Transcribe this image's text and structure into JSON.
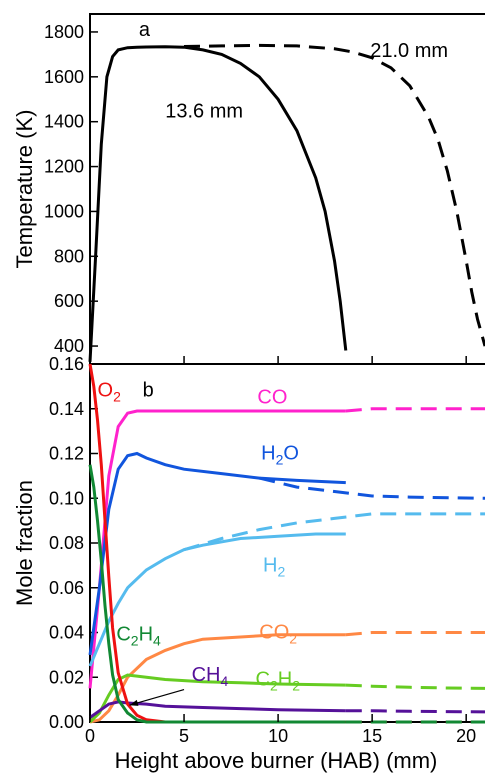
{
  "figure": {
    "xlabel": "Height above burner (HAB) (mm)",
    "x_ticks": [
      "0",
      "5",
      "10",
      "15",
      "20"
    ]
  },
  "chart_data": [
    {
      "type": "line",
      "panel_label": "a",
      "ylabel": "Temperature (K)",
      "ylim": [
        320,
        1880
      ],
      "xlim": [
        0,
        21
      ],
      "y_ticks": [
        "400",
        "600",
        "800",
        "1000",
        "1200",
        "1400",
        "1600",
        "1800"
      ],
      "series": [
        {
          "name": "13.6 mm",
          "style": "solid",
          "color": "#000000",
          "x": [
            0.0,
            0.3,
            0.6,
            0.9,
            1.2,
            1.5,
            2.0,
            2.5,
            3.0,
            4.0,
            5.0,
            6.0,
            7.0,
            8.0,
            9.0,
            10.0,
            11.0,
            12.0,
            12.5,
            13.0,
            13.3,
            13.6
          ],
          "y": [
            330,
            800,
            1300,
            1600,
            1690,
            1720,
            1730,
            1732,
            1733,
            1734,
            1732,
            1720,
            1700,
            1660,
            1600,
            1500,
            1360,
            1150,
            1000,
            780,
            600,
            380
          ]
        },
        {
          "name": "21.0 mm",
          "style": "dashed",
          "color": "#000000",
          "x": [
            5.0,
            7.0,
            9.0,
            11.0,
            13.0,
            14.0,
            15.0,
            16.0,
            17.0,
            18.0,
            18.5,
            19.0,
            19.5,
            20.0,
            20.3,
            20.6,
            21.0
          ],
          "y": [
            1735,
            1738,
            1740,
            1738,
            1725,
            1710,
            1685,
            1640,
            1560,
            1420,
            1320,
            1180,
            1000,
            780,
            640,
            520,
            400
          ]
        }
      ],
      "labels": [
        {
          "text": "21.0 mm",
          "x": 14.9,
          "y": 1720,
          "color": "#000000"
        },
        {
          "text": "13.6 mm",
          "x": 4.0,
          "y": 1450,
          "color": "#000000"
        }
      ]
    },
    {
      "type": "line",
      "panel_label": "b",
      "ylabel": "Mole fraction",
      "ylim": [
        0,
        0.16
      ],
      "xlim": [
        0,
        21
      ],
      "y_ticks": [
        "0.00",
        "0.02",
        "0.04",
        "0.06",
        "0.08",
        "0.10",
        "0.12",
        "0.14",
        "0.16"
      ],
      "series": [
        {
          "name": "CO",
          "color": "#ff22cc",
          "solid": {
            "x": [
              0.0,
              0.5,
              1.0,
              1.5,
              2.0,
              2.5,
              3.0,
              5.0,
              8.0,
              13.6
            ],
            "y": [
              0.015,
              0.06,
              0.11,
              0.132,
              0.138,
              0.139,
              0.139,
              0.139,
              0.139,
              0.139
            ]
          },
          "dashed": {
            "x": [
              13.6,
              15.0,
              17.0,
              21.0
            ],
            "y": [
              0.139,
              0.14,
              0.14,
              0.14
            ]
          }
        },
        {
          "name": "H2O",
          "color": "#1155dd",
          "solid": {
            "x": [
              0.0,
              0.5,
              1.0,
              1.5,
              2.0,
              2.5,
              3.0,
              4.0,
              5.0,
              7.0,
              9.0,
              11.0,
              13.6
            ],
            "y": [
              0.03,
              0.06,
              0.095,
              0.113,
              0.119,
              0.12,
              0.118,
              0.115,
              0.113,
              0.111,
              0.109,
              0.108,
              0.107
            ]
          },
          "dashed": {
            "x": [
              9.0,
              11.0,
              13.0,
              15.0,
              17.0,
              21.0
            ],
            "y": [
              0.109,
              0.105,
              0.103,
              0.101,
              0.1005,
              0.1
            ]
          }
        },
        {
          "name": "H2",
          "color": "#55bbee",
          "solid": {
            "x": [
              0.0,
              0.5,
              1.0,
              1.5,
              2.0,
              3.0,
              4.0,
              5.0,
              6.0,
              8.0,
              10.0,
              12.0,
              13.6
            ],
            "y": [
              0.025,
              0.035,
              0.045,
              0.053,
              0.06,
              0.068,
              0.073,
              0.077,
              0.079,
              0.082,
              0.083,
              0.084,
              0.084
            ]
          },
          "dashed": {
            "x": [
              5.0,
              7.0,
              9.0,
              11.0,
              13.0,
              15.0,
              17.0,
              21.0
            ],
            "y": [
              0.077,
              0.082,
              0.086,
              0.089,
              0.091,
              0.093,
              0.093,
              0.093
            ]
          }
        },
        {
          "name": "CO2",
          "color": "#ff8844",
          "solid": {
            "x": [
              0.0,
              0.5,
              1.0,
              1.5,
              2.0,
              3.0,
              4.0,
              5.0,
              6.0,
              8.0,
              10.0,
              13.6
            ],
            "y": [
              0.0,
              0.001,
              0.005,
              0.012,
              0.02,
              0.028,
              0.032,
              0.035,
              0.037,
              0.038,
              0.039,
              0.039
            ]
          },
          "dashed": {
            "x": [
              13.6,
              15.0,
              17.0,
              21.0
            ],
            "y": [
              0.039,
              0.04,
              0.04,
              0.04
            ]
          }
        },
        {
          "name": "C2H2",
          "color": "#66cc22",
          "solid": {
            "x": [
              0.0,
              0.5,
              1.0,
              1.5,
              2.0,
              2.5,
              3.0,
              4.0,
              6.0,
              8.0,
              10.0,
              13.6
            ],
            "y": [
              0.0,
              0.004,
              0.012,
              0.019,
              0.021,
              0.0205,
              0.02,
              0.019,
              0.018,
              0.0175,
              0.017,
              0.0165
            ]
          },
          "dashed": {
            "x": [
              13.6,
              15.0,
              17.0,
              19.0,
              21.0
            ],
            "y": [
              0.0165,
              0.016,
              0.0155,
              0.0152,
              0.015
            ]
          }
        },
        {
          "name": "CH4",
          "color": "#551199",
          "solid": {
            "x": [
              0.0,
              0.5,
              1.0,
              1.5,
              2.0,
              3.0,
              4.0,
              6.0,
              8.0,
              10.0,
              13.6
            ],
            "y": [
              0.002,
              0.005,
              0.008,
              0.009,
              0.0085,
              0.008,
              0.007,
              0.0065,
              0.006,
              0.0055,
              0.005
            ]
          },
          "dashed": {
            "x": [
              13.6,
              15.0,
              17.0,
              21.0
            ],
            "y": [
              0.005,
              0.005,
              0.0048,
              0.0045
            ]
          }
        },
        {
          "name": "O2",
          "color": "#ee1111",
          "solid": {
            "x": [
              0.0,
              0.2,
              0.4,
              0.6,
              0.8,
              1.0,
              1.2,
              1.5,
              2.0,
              2.5,
              3.0,
              4.0,
              5.0,
              8.0,
              13.6
            ],
            "y": [
              0.16,
              0.15,
              0.135,
              0.115,
              0.09,
              0.065,
              0.042,
              0.022,
              0.008,
              0.003,
              0.001,
              0.0,
              0.0,
              0.0,
              0.0
            ]
          },
          "dashed": {
            "x": [
              13.6,
              21.0
            ],
            "y": [
              0.0,
              0.0
            ]
          }
        },
        {
          "name": "C2H4",
          "color": "#118833",
          "solid": {
            "x": [
              0.0,
              0.2,
              0.4,
              0.6,
              0.8,
              1.0,
              1.2,
              1.5,
              2.0,
              2.5,
              3.0,
              4.0,
              5.0,
              8.0,
              13.6
            ],
            "y": [
              0.115,
              0.105,
              0.09,
              0.072,
              0.052,
              0.035,
              0.021,
              0.01,
              0.004,
              0.001,
              0.0,
              0.0,
              0.0,
              0.0,
              0.0
            ]
          },
          "dashed": {
            "x": [
              13.6,
              21.0
            ],
            "y": [
              0.0,
              0.0
            ]
          }
        }
      ],
      "labels": [
        {
          "key": "o2",
          "base": "O",
          "sub": "2",
          "color": "#ee1111",
          "x": 0.4,
          "y": 0.1485
        },
        {
          "key": "co",
          "base": "CO",
          "sub": "",
          "color": "#ff22cc",
          "x": 8.9,
          "y": 0.1455
        },
        {
          "key": "h2o",
          "base": "H",
          "sub": "2",
          "tail": "O",
          "color": "#1155dd",
          "x": 9.1,
          "y": 0.1205
        },
        {
          "key": "h2",
          "base": "H",
          "sub": "2",
          "color": "#55bbee",
          "x": 9.2,
          "y": 0.0705
        },
        {
          "key": "co2",
          "base": "CO",
          "sub": "2",
          "color": "#ff8844",
          "x": 9.0,
          "y": 0.0405
        },
        {
          "key": "c2h4",
          "base": "C",
          "sub": "2",
          "tail": "H",
          "sub2": "4",
          "color": "#118833",
          "x": 1.4,
          "y": 0.0395
        },
        {
          "key": "ch4",
          "base": "CH",
          "sub": "4",
          "color": "#551199",
          "x": 5.4,
          "y": 0.0215
        },
        {
          "key": "c2h2",
          "base": "C",
          "sub": "2",
          "tail": "H",
          "sub2": "2",
          "color": "#66cc22",
          "x": 8.8,
          "y": 0.0195
        }
      ],
      "arrow": {
        "from": [
          5.0,
          0.0145
        ],
        "to": [
          2.1,
          0.0075
        ],
        "color": "#000000"
      }
    }
  ]
}
